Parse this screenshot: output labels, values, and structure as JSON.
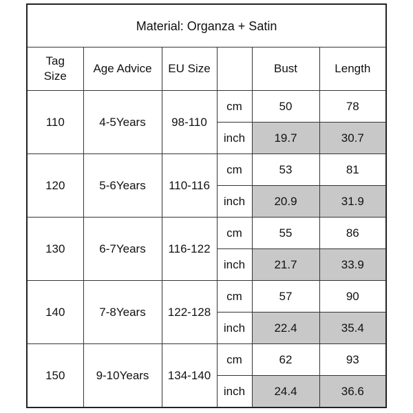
{
  "title": "Material: Organza + Satin",
  "header": [
    "Tag Size",
    "Age Advice",
    "EU Size",
    "Bust",
    "Length"
  ],
  "rows": [
    {
      "tag": "110",
      "age": "4-5Years",
      "eu": "98-110",
      "cm": {
        "unit": "cm",
        "bust": "50",
        "length": "78"
      },
      "inch": {
        "unit": "inch",
        "bust": "19.7",
        "length": "30.7"
      }
    },
    {
      "tag": "120",
      "age": "5-6Years",
      "eu": "110-116",
      "cm": {
        "unit": "cm",
        "bust": "53",
        "length": "81"
      },
      "inch": {
        "unit": "inch",
        "bust": "20.9",
        "length": "31.9"
      }
    },
    {
      "tag": "130",
      "age": "6-7Years",
      "eu": "116-122",
      "cm": {
        "unit": "cm",
        "bust": "55",
        "length": "86"
      },
      "inch": {
        "unit": "inch",
        "bust": "21.7",
        "length": "33.9"
      }
    },
    {
      "tag": "140",
      "age": "7-8Years",
      "eu": "122-128",
      "cm": {
        "unit": "cm",
        "bust": "57",
        "length": "90"
      },
      "inch": {
        "unit": "inch",
        "bust": "22.4",
        "length": "35.4"
      }
    },
    {
      "tag": "150",
      "age": "9-10Years",
      "eu": "134-140",
      "cm": {
        "unit": "cm",
        "bust": "62",
        "length": "93"
      },
      "inch": {
        "unit": "inch",
        "bust": "24.4",
        "length": "36.6"
      }
    }
  ]
}
